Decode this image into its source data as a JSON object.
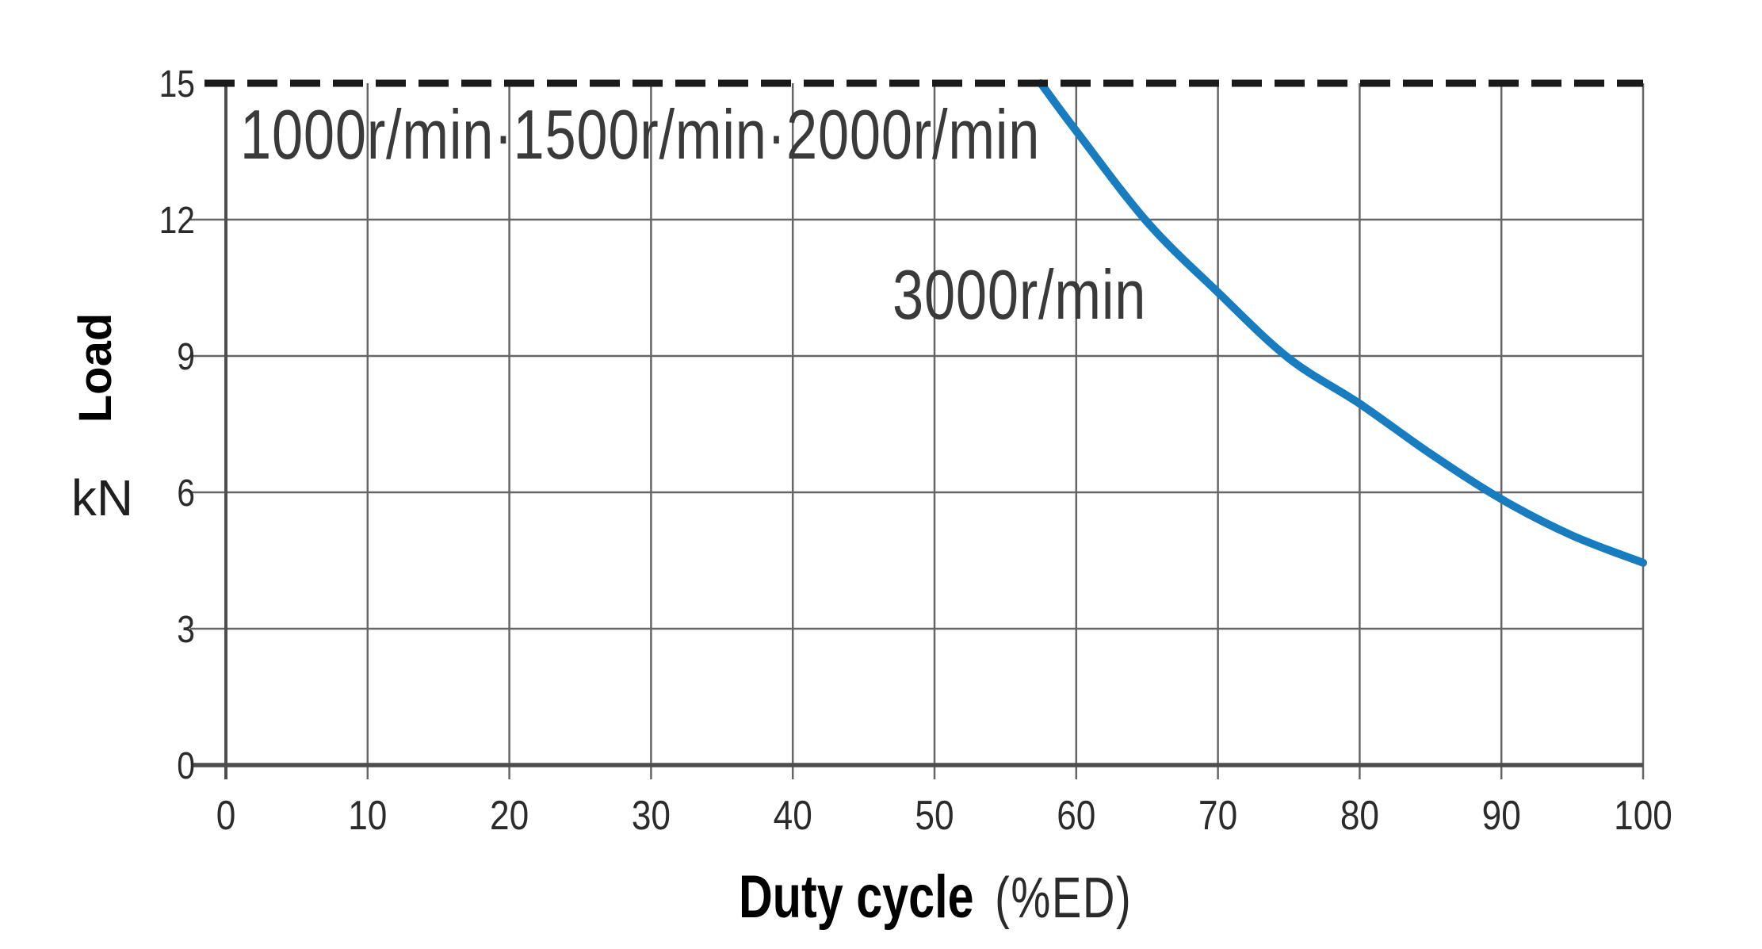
{
  "chart_data": {
    "type": "line",
    "title": "",
    "xlabel": "Duty cycle",
    "xlabel_unit": "(%ED)",
    "ylabel": "Load",
    "ylabel_unit": "kN",
    "xlim": [
      0,
      100
    ],
    "ylim": [
      0,
      15
    ],
    "x_ticks": [
      0,
      10,
      20,
      30,
      40,
      50,
      60,
      70,
      80,
      90,
      100
    ],
    "y_ticks": [
      0,
      3,
      6,
      9,
      12,
      15
    ],
    "grid": true,
    "legend_position": "none",
    "colors": {
      "curve": "#187cc0",
      "limit_line": "#1a1a1a",
      "grid": "#666666",
      "axis": "#4d4d4d",
      "tick_text": "#2b2b2b"
    },
    "series": [
      {
        "name": "1000r/min·1500r/min·2000r/min",
        "style": "dashed",
        "points": [
          [
            0,
            15
          ],
          [
            100,
            15
          ]
        ]
      },
      {
        "name": "3000r/min",
        "style": "solid",
        "points": [
          [
            57.5,
            15
          ],
          [
            60,
            13.95
          ],
          [
            65,
            11.95
          ],
          [
            70,
            10.4
          ],
          [
            75,
            8.95
          ],
          [
            80,
            7.95
          ],
          [
            85,
            6.85
          ],
          [
            90,
            5.85
          ],
          [
            95,
            5.05
          ],
          [
            100,
            4.45
          ]
        ]
      }
    ],
    "annotations": [
      {
        "text": "1000r/min·1500r/min·2000r/min",
        "x": 1.5,
        "y": 13.9
      },
      {
        "text": "3000r/min",
        "x": 47,
        "y": 10.4
      }
    ]
  }
}
